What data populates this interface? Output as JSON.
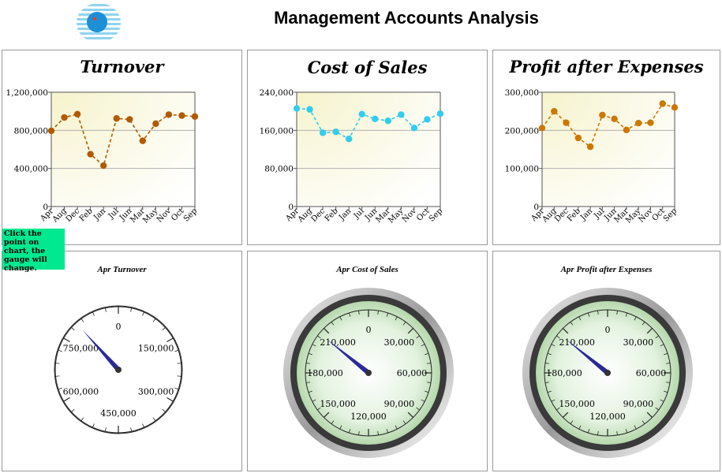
{
  "page": {
    "title": "Management Accounts Analysis"
  },
  "logo": {
    "icon": "company-logo-icon"
  },
  "note": {
    "text": "Click the point on chart, the gauge will change."
  },
  "chart_data": [
    {
      "type": "line",
      "title": "Turnover",
      "categories": [
        "Apr",
        "Aug",
        "Dec",
        "Feb",
        "Jan",
        "Jul",
        "Jun",
        "Mar",
        "May",
        "Nov",
        "Oct",
        "Sep"
      ],
      "values": [
        795000,
        935000,
        970000,
        550000,
        430000,
        925000,
        915000,
        690000,
        870000,
        965000,
        955000,
        945000
      ],
      "ylim": [
        0,
        1200000
      ],
      "yticks": [
        "0",
        "400,000",
        "800,000",
        "1,200,000"
      ],
      "ytick_values": [
        0,
        400000,
        800000,
        1200000
      ],
      "color": "#b25a00",
      "grid": true,
      "xlabel": "",
      "ylabel": ""
    },
    {
      "type": "line",
      "title": "Cost of Sales",
      "categories": [
        "Apr",
        "Aug",
        "Dec",
        "Feb",
        "Jan",
        "Jul",
        "Jun",
        "Mar",
        "May",
        "Nov",
        "Oct",
        "Sep"
      ],
      "values": [
        206000,
        204000,
        155000,
        157000,
        142000,
        194000,
        184000,
        180000,
        193000,
        165000,
        183000,
        195000
      ],
      "ylim": [
        0,
        240000
      ],
      "yticks": [
        "0",
        "80,000",
        "160,000",
        "240,000"
      ],
      "ytick_values": [
        0,
        80000,
        160000,
        240000
      ],
      "color": "#33ccee",
      "grid": true,
      "xlabel": "",
      "ylabel": ""
    },
    {
      "type": "line",
      "title": "Profit after Expenses",
      "categories": [
        "Apr",
        "Aug",
        "Dec",
        "Feb",
        "Jan",
        "Jul",
        "Jun",
        "Mar",
        "May",
        "Nov",
        "Oct",
        "Sep"
      ],
      "values": [
        206000,
        250000,
        220000,
        180000,
        157000,
        240000,
        230000,
        201000,
        219000,
        220000,
        270000,
        260000
      ],
      "ylim": [
        0,
        300000
      ],
      "yticks": [
        "0",
        "100,000",
        "200,000",
        "300,000"
      ],
      "ytick_values": [
        0,
        100000,
        200000,
        300000
      ],
      "color": "#cc7700",
      "grid": true,
      "xlabel": "",
      "ylabel": ""
    }
  ],
  "gauges": [
    {
      "title": "Apr Turnover",
      "max": 900000,
      "value": 795000,
      "labels": [
        "0",
        "150,000",
        "300,000",
        "450,000",
        "600,000",
        "750,000"
      ],
      "label_values": [
        0,
        150000,
        300000,
        450000,
        600000,
        750000
      ],
      "style": "plain"
    },
    {
      "title": "Apr Cost of Sales",
      "max": 240000,
      "value": 206000,
      "labels": [
        "0",
        "30,000",
        "60,000",
        "90,000",
        "120,000",
        "150,000",
        "180,000",
        "210,000"
      ],
      "label_values": [
        0,
        30000,
        60000,
        90000,
        120000,
        150000,
        180000,
        210000
      ],
      "style": "bezel"
    },
    {
      "title": "Apr Profit after Expenses",
      "max": 240000,
      "value": 206000,
      "labels": [
        "0",
        "30,000",
        "60,000",
        "90,000",
        "120,000",
        "150,000",
        "180,000",
        "210,000"
      ],
      "label_values": [
        0,
        30000,
        60000,
        90000,
        120000,
        150000,
        180000,
        210000
      ],
      "style": "bezel"
    }
  ]
}
